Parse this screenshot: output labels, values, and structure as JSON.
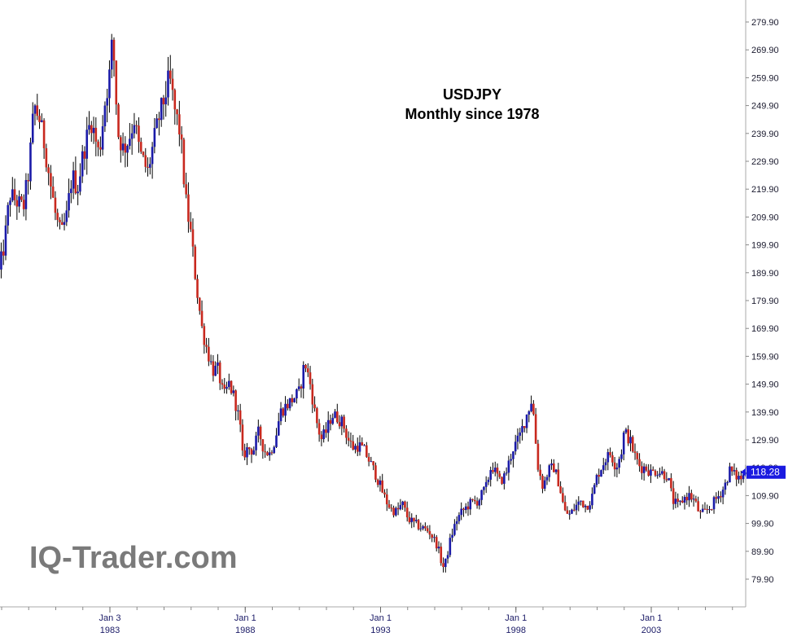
{
  "chart_data": {
    "type": "candlestick",
    "title": "USDJPY",
    "subtitle": "Monthly since 1978",
    "ylim": [
      75,
      285
    ],
    "y_ticks": [
      "279.90",
      "269.90",
      "259.90",
      "249.90",
      "239.90",
      "229.90",
      "219.90",
      "209.90",
      "199.90",
      "189.90",
      "179.90",
      "169.90",
      "159.90",
      "149.90",
      "139.90",
      "129.90",
      "119.90",
      "109.90",
      "99.90",
      "89.90",
      "79.90"
    ],
    "x_ticks": [
      {
        "line1": "Jan 3",
        "line2": "1983",
        "year": 1983.0
      },
      {
        "line1": "Jan 1",
        "line2": "1988",
        "year": 1988.0
      },
      {
        "line1": "Jan 1",
        "line2": "1993",
        "year": 1993.0
      },
      {
        "line1": "Jan 1",
        "line2": "1998",
        "year": 1998.0
      },
      {
        "line1": "Jan 1",
        "line2": "2003",
        "year": 2003.0
      }
    ],
    "x_range": [
      1978.9,
      2006.5
    ],
    "last_value": "118.28",
    "up_color": "#1a1aa8",
    "down_color": "#c8281e",
    "wick_color": "#000000",
    "path": [
      [
        1978.9,
        190
      ],
      [
        1979.1,
        200
      ],
      [
        1979.3,
        218
      ],
      [
        1979.6,
        215
      ],
      [
        1979.8,
        213
      ],
      [
        1980.0,
        226
      ],
      [
        1980.2,
        250
      ],
      [
        1980.4,
        245
      ],
      [
        1980.6,
        235
      ],
      [
        1980.8,
        222
      ],
      [
        1981.0,
        210
      ],
      [
        1981.2,
        203
      ],
      [
        1981.4,
        210
      ],
      [
        1981.6,
        225
      ],
      [
        1981.8,
        220
      ],
      [
        1982.0,
        232
      ],
      [
        1982.3,
        245
      ],
      [
        1982.6,
        232
      ],
      [
        1982.8,
        250
      ],
      [
        1983.0,
        262
      ],
      [
        1983.1,
        275
      ],
      [
        1983.3,
        240
      ],
      [
        1983.5,
        234
      ],
      [
        1983.7,
        238
      ],
      [
        1983.9,
        245
      ],
      [
        1984.1,
        233
      ],
      [
        1984.4,
        226
      ],
      [
        1984.6,
        236
      ],
      [
        1984.8,
        245
      ],
      [
        1985.0,
        252
      ],
      [
        1985.2,
        260
      ],
      [
        1985.4,
        248
      ],
      [
        1985.6,
        240
      ],
      [
        1985.8,
        216
      ],
      [
        1986.0,
        203
      ],
      [
        1986.2,
        185
      ],
      [
        1986.4,
        170
      ],
      [
        1986.6,
        162
      ],
      [
        1986.8,
        155
      ],
      [
        1987.0,
        155
      ],
      [
        1987.2,
        145
      ],
      [
        1987.4,
        150
      ],
      [
        1987.6,
        145
      ],
      [
        1987.8,
        136
      ],
      [
        1987.9,
        124
      ],
      [
        1988.1,
        127
      ],
      [
        1988.3,
        126
      ],
      [
        1988.5,
        133
      ],
      [
        1988.7,
        126
      ],
      [
        1988.9,
        125
      ],
      [
        1989.1,
        130
      ],
      [
        1989.3,
        140
      ],
      [
        1989.5,
        142
      ],
      [
        1989.8,
        145
      ],
      [
        1990.0,
        147
      ],
      [
        1990.2,
        158
      ],
      [
        1990.4,
        150
      ],
      [
        1990.6,
        138
      ],
      [
        1990.8,
        130
      ],
      [
        1991.0,
        133
      ],
      [
        1991.2,
        139
      ],
      [
        1991.4,
        138
      ],
      [
        1991.6,
        136
      ],
      [
        1991.8,
        130
      ],
      [
        1992.0,
        127
      ],
      [
        1992.2,
        128
      ],
      [
        1992.4,
        126
      ],
      [
        1992.6,
        122
      ],
      [
        1992.8,
        118
      ],
      [
        1993.0,
        113
      ],
      [
        1993.2,
        108
      ],
      [
        1993.4,
        105
      ],
      [
        1993.6,
        104
      ],
      [
        1993.8,
        107
      ],
      [
        1994.0,
        102
      ],
      [
        1994.2,
        100
      ],
      [
        1994.4,
        99
      ],
      [
        1994.6,
        98
      ],
      [
        1994.8,
        97
      ],
      [
        1995.1,
        92
      ],
      [
        1995.3,
        84
      ],
      [
        1995.4,
        86
      ],
      [
        1995.6,
        95
      ],
      [
        1995.8,
        101
      ],
      [
        1996.0,
        104
      ],
      [
        1996.3,
        107
      ],
      [
        1996.6,
        108
      ],
      [
        1996.9,
        113
      ],
      [
        1997.1,
        121
      ],
      [
        1997.4,
        115
      ],
      [
        1997.6,
        117
      ],
      [
        1997.9,
        127
      ],
      [
        1998.1,
        130
      ],
      [
        1998.4,
        139
      ],
      [
        1998.6,
        145
      ],
      [
        1998.8,
        121
      ],
      [
        1999.0,
        113
      ],
      [
        1999.2,
        119
      ],
      [
        1999.4,
        120
      ],
      [
        1999.6,
        114
      ],
      [
        1999.8,
        104
      ],
      [
        2000.0,
        103
      ],
      [
        2000.2,
        106
      ],
      [
        2000.4,
        108
      ],
      [
        2000.6,
        106
      ],
      [
        2000.8,
        109
      ],
      [
        2001.0,
        117
      ],
      [
        2001.3,
        123
      ],
      [
        2001.5,
        125
      ],
      [
        2001.7,
        120
      ],
      [
        2001.9,
        126
      ],
      [
        2002.0,
        133
      ],
      [
        2002.2,
        130
      ],
      [
        2002.4,
        124
      ],
      [
        2002.6,
        120
      ],
      [
        2002.8,
        120
      ],
      [
        2003.0,
        118
      ],
      [
        2003.2,
        119
      ],
      [
        2003.4,
        118
      ],
      [
        2003.6,
        117
      ],
      [
        2003.8,
        108
      ],
      [
        2004.0,
        106
      ],
      [
        2004.2,
        109
      ],
      [
        2004.4,
        110
      ],
      [
        2004.6,
        108
      ],
      [
        2004.8,
        103
      ],
      [
        2005.0,
        104
      ],
      [
        2005.2,
        106
      ],
      [
        2005.5,
        110
      ],
      [
        2005.7,
        113
      ],
      [
        2005.9,
        119
      ],
      [
        2006.1,
        117
      ],
      [
        2006.3,
        116
      ],
      [
        2006.5,
        118.28
      ]
    ]
  },
  "watermark": "IQ-Trader.com"
}
